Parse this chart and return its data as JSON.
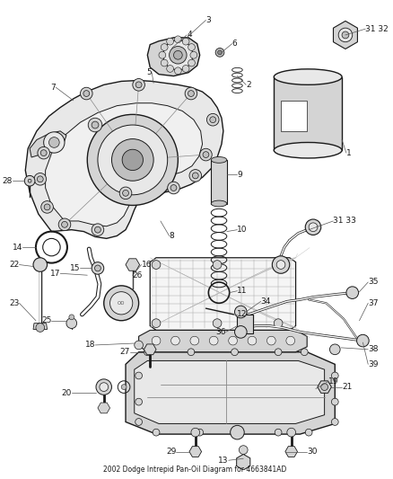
{
  "title": "2002 Dodge Intrepid Pan-Oil Diagram for 4663841AD",
  "bg_color": "#ffffff",
  "fig_width": 4.38,
  "fig_height": 5.33,
  "dpi": 100,
  "line_color": "#1a1a1a",
  "label_color": "#1a1a1a",
  "label_fontsize": 6.5,
  "gray_fill": "#e8e8e8",
  "dark_gray": "#c0c0c0",
  "mid_gray": "#d4d4d4"
}
